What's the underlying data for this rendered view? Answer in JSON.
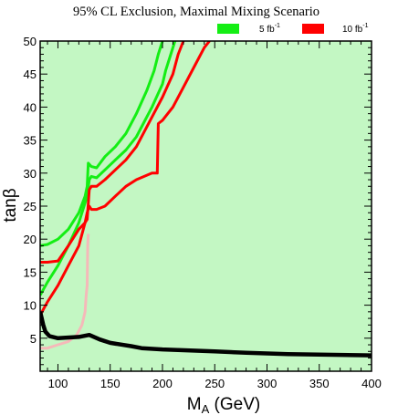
{
  "chart_data": {
    "type": "line",
    "title": "95% CL Exclusion, Maximal Mixing Scenario",
    "xlabel": {
      "main": "M",
      "sub": "A",
      "unit": " (GeV)"
    },
    "ylabel": "tanβ",
    "xlim": [
      83,
      400
    ],
    "ylim": [
      0,
      50
    ],
    "xticks": [
      100,
      150,
      200,
      250,
      300,
      350,
      400
    ],
    "yticks": [
      5,
      10,
      15,
      20,
      25,
      30,
      35,
      40,
      45,
      50
    ],
    "grid": false,
    "background_color": "#c3f7c3",
    "legend_position": "top-right",
    "legend": [
      {
        "label": "5 fb",
        "sup": "-1",
        "color": "#14ee14"
      },
      {
        "label": "10 fb",
        "sup": "-1",
        "color": "#ff0000"
      }
    ],
    "series": [
      {
        "color": "#14ee14",
        "points": [
          [
            83,
            11.5
          ],
          [
            90,
            13.5
          ],
          [
            100,
            16
          ],
          [
            110,
            19
          ],
          [
            120,
            22.5
          ],
          [
            126,
            25.5
          ],
          [
            128,
            26.5
          ],
          [
            130,
            29
          ],
          [
            132,
            29.5
          ],
          [
            137,
            29.3
          ],
          [
            145,
            30.5
          ],
          [
            155,
            32
          ],
          [
            165,
            33.5
          ],
          [
            175,
            35.5
          ],
          [
            190,
            40
          ],
          [
            200,
            43.5
          ],
          [
            203,
            45.5
          ],
          [
            208,
            48
          ],
          [
            212,
            50
          ]
        ]
      },
      {
        "color": "#14ee14",
        "points": [
          [
            83,
            19
          ],
          [
            90,
            19.2
          ],
          [
            100,
            20
          ],
          [
            110,
            21.5
          ],
          [
            120,
            24
          ],
          [
            126,
            26.5
          ],
          [
            128,
            28
          ],
          [
            129,
            31.5
          ],
          [
            132,
            31
          ],
          [
            137,
            30.8
          ],
          [
            145,
            32.5
          ],
          [
            155,
            34
          ],
          [
            165,
            36
          ],
          [
            175,
            39
          ],
          [
            185,
            42.5
          ],
          [
            192,
            45.5
          ],
          [
            196,
            48
          ],
          [
            200,
            50
          ]
        ]
      },
      {
        "color": "#ff0000",
        "points": [
          [
            83,
            8.5
          ],
          [
            90,
            10.5
          ],
          [
            100,
            13
          ],
          [
            110,
            16
          ],
          [
            120,
            19
          ],
          [
            126,
            22.5
          ],
          [
            128,
            23
          ],
          [
            130,
            27.5
          ],
          [
            132,
            28
          ],
          [
            137,
            28
          ],
          [
            145,
            29
          ],
          [
            155,
            30.5
          ],
          [
            165,
            32
          ],
          [
            175,
            34
          ],
          [
            190,
            38.5
          ],
          [
            200,
            41.5
          ],
          [
            210,
            45
          ],
          [
            215,
            48
          ],
          [
            220,
            50
          ]
        ]
      },
      {
        "color": "#ff0000",
        "points": [
          [
            83,
            16.5
          ],
          [
            90,
            16.5
          ],
          [
            100,
            16.7
          ],
          [
            110,
            19
          ],
          [
            120,
            21.5
          ],
          [
            126,
            22.5
          ],
          [
            128,
            24
          ],
          [
            130,
            25
          ],
          [
            132,
            24.5
          ],
          [
            137,
            24.5
          ],
          [
            145,
            25
          ],
          [
            155,
            26.5
          ],
          [
            165,
            28
          ],
          [
            175,
            29
          ],
          [
            190,
            30
          ],
          [
            195,
            30
          ],
          [
            196,
            37.5
          ],
          [
            200,
            38
          ],
          [
            210,
            40
          ],
          [
            220,
            43
          ],
          [
            230,
            46
          ],
          [
            240,
            49
          ],
          [
            245,
            50
          ]
        ]
      },
      {
        "color": "#f5b9b9",
        "points": [
          [
            83,
            3.5
          ],
          [
            90,
            3.5
          ],
          [
            100,
            4
          ],
          [
            110,
            4.5
          ],
          [
            118,
            5.5
          ],
          [
            123,
            7
          ],
          [
            126,
            9
          ],
          [
            127,
            11.5
          ],
          [
            128,
            13
          ],
          [
            128.5,
            19
          ],
          [
            129,
            20.8
          ]
        ]
      },
      {
        "color": "#000000",
        "points": [
          [
            83,
            9
          ],
          [
            86,
            7
          ],
          [
            88,
            6
          ],
          [
            92,
            5.3
          ],
          [
            100,
            5
          ],
          [
            120,
            5.2
          ],
          [
            130,
            5.5
          ],
          [
            140,
            4.8
          ],
          [
            150,
            4.3
          ],
          [
            170,
            3.8
          ],
          [
            180,
            3.5
          ],
          [
            200,
            3.3
          ],
          [
            250,
            3
          ],
          [
            280,
            2.8
          ],
          [
            320,
            2.6
          ],
          [
            400,
            2.4
          ]
        ]
      }
    ]
  }
}
